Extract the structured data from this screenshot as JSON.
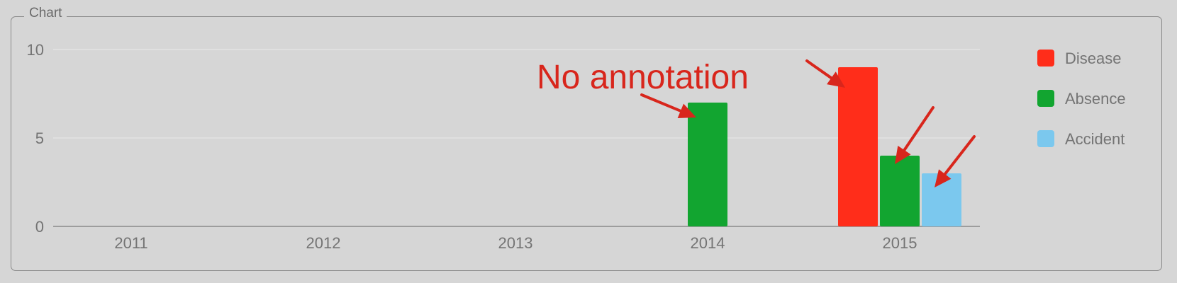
{
  "panel": {
    "title": "Chart"
  },
  "chart_data": {
    "type": "bar",
    "categories": [
      "2011",
      "2012",
      "2013",
      "2014",
      "2015"
    ],
    "series": [
      {
        "name": "Disease",
        "color": "#ff2d1a",
        "values": [
          0,
          0,
          0,
          0,
          9
        ]
      },
      {
        "name": "Absence",
        "color": "#12a530",
        "values": [
          0,
          0,
          0,
          7,
          4
        ]
      },
      {
        "name": "Accident",
        "color": "#7bc8ee",
        "values": [
          0,
          0,
          0,
          0,
          3
        ]
      }
    ],
    "ylim": [
      0,
      10
    ],
    "yticks": [
      0,
      5,
      10
    ],
    "grid": true,
    "legend": "right",
    "annotation": {
      "text": "No annotation",
      "color": "#d8261c"
    }
  }
}
